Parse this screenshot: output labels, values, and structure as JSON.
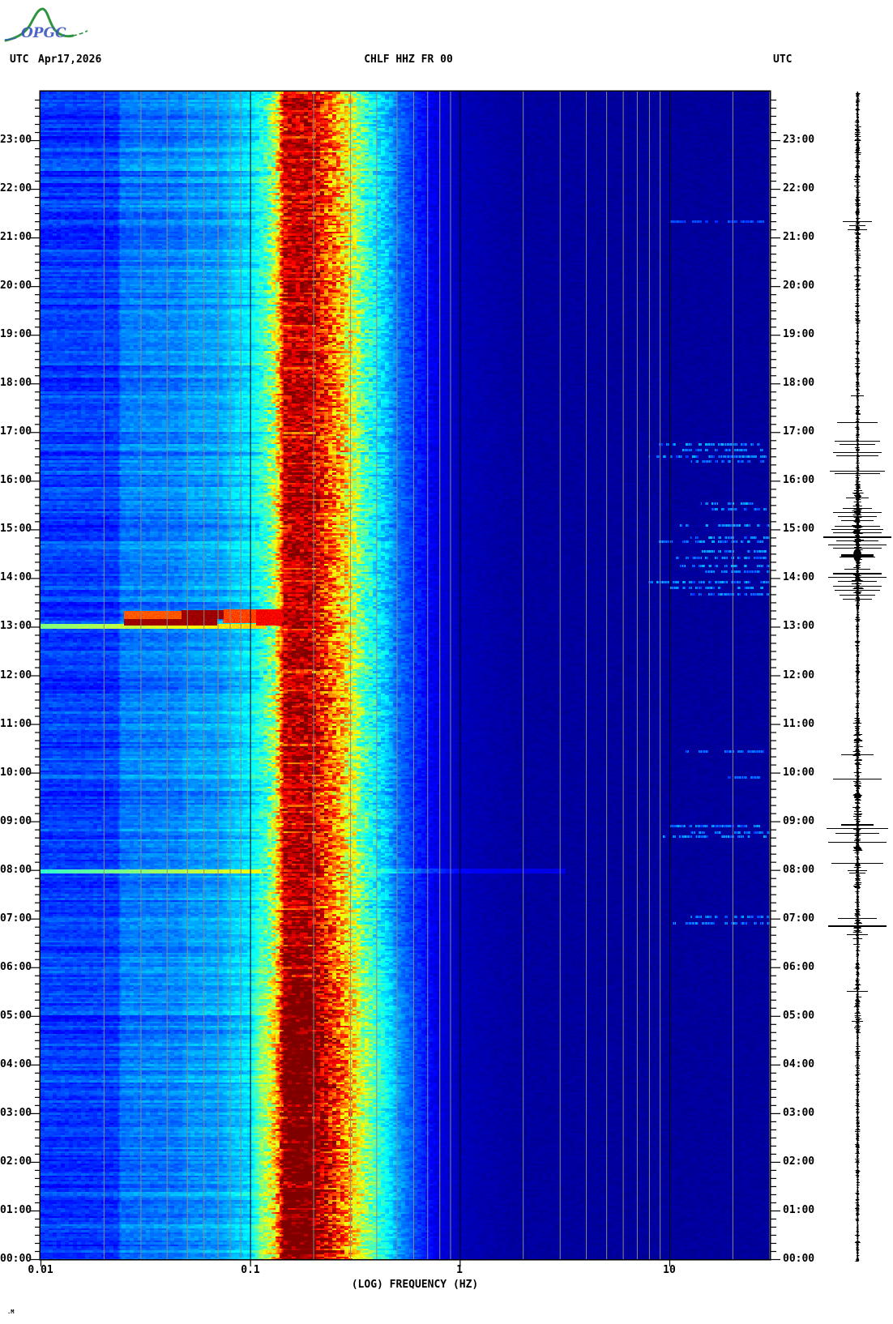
{
  "header": {
    "logo_text": "OPGC",
    "utc_left": "UTC",
    "date": "Apr17,2026",
    "title": "CHLF HHZ FR 00",
    "utc_right": "UTC"
  },
  "footer": {
    "glyph": ".M"
  },
  "axes": {
    "x_title": "(LOG) FREQUENCY (HZ)",
    "freq_ticks": [
      {
        "hz": 0.01,
        "label": "0.01"
      },
      {
        "hz": 0.1,
        "label": "0.1"
      },
      {
        "hz": 1,
        "label": "1"
      },
      {
        "hz": 10,
        "label": "10"
      }
    ],
    "time_labels": [
      "00:00",
      "01:00",
      "02:00",
      "03:00",
      "04:00",
      "05:00",
      "06:00",
      "07:00",
      "08:00",
      "09:00",
      "10:00",
      "11:00",
      "12:00",
      "13:00",
      "14:00",
      "15:00",
      "16:00",
      "17:00",
      "18:00",
      "19:00",
      "20:00",
      "21:00",
      "22:00",
      "23:00"
    ],
    "minor_tick_minutes": 10
  },
  "palette": {
    "grid_gray": "#8a8a8a",
    "axis_black": "#000000",
    "background": "#ffffff",
    "logo_green": "#2e9440",
    "logo_blue": "#3a55c0"
  },
  "chart_data": {
    "type": "heatmap",
    "subtype": "seismic-spectrogram",
    "station": "CHLF HHZ FR 00",
    "date_utc": "Apr17,2026",
    "colormap": "jet",
    "x_axis": {
      "label": "(LOG) FREQUENCY (HZ)",
      "scale": "log",
      "min_hz": 0.01,
      "max_hz": 30,
      "decade_labels": [
        "0.01",
        "0.1",
        "1",
        "10"
      ]
    },
    "y_axis": {
      "label": "UTC",
      "bottom": "00:00",
      "top": "24:00",
      "hour_labels_both_sides": true,
      "minor_tick_minutes": 10
    },
    "gridlines": {
      "gray_multiples": [
        2,
        3,
        4,
        5,
        6,
        7,
        8,
        9
      ],
      "black_lines_hz": [
        0.1,
        1,
        10
      ],
      "gray_also_hz": [
        20,
        30
      ]
    },
    "background_spectrum_logf_level": [
      [
        -2.0,
        0.18
      ],
      [
        -1.63,
        0.18
      ],
      [
        -1.62,
        0.24
      ],
      [
        -1.33,
        0.25
      ],
      [
        -1.31,
        0.27
      ],
      [
        -1.14,
        0.28
      ],
      [
        -1.1,
        0.31
      ],
      [
        -1.02,
        0.34
      ],
      [
        -0.98,
        0.37
      ],
      [
        -0.93,
        0.43
      ],
      [
        -0.885,
        0.55
      ],
      [
        -0.862,
        0.7
      ],
      [
        -0.84,
        0.93
      ],
      [
        -0.71,
        0.95
      ],
      [
        -0.675,
        0.87
      ],
      [
        -0.62,
        0.78
      ],
      [
        -0.565,
        0.69
      ],
      [
        -0.54,
        0.63
      ],
      [
        -0.5,
        0.55
      ],
      [
        -0.46,
        0.45
      ],
      [
        -0.4,
        0.37
      ],
      [
        -0.36,
        0.33
      ],
      [
        -0.3,
        0.24
      ],
      [
        -0.22,
        0.17
      ],
      [
        -0.12,
        0.1
      ],
      [
        0.0,
        0.055
      ],
      [
        0.25,
        0.032
      ],
      [
        0.7,
        0.028
      ],
      [
        1.48,
        0.028
      ]
    ],
    "features": [
      "strong continuous microseism band ~0.13-0.2 Hz (dark red)",
      "orange/yellow flank 0.2-0.3 Hz, cyan 0.09-0.13 Hz and 0.3-0.45 Hz",
      "band widens toward low frequency before ~07:00 UTC",
      "broadband transient 13:00-13:20 UTC with dark red patches 0.025-0.07 Hz",
      "thin broadband line at 13:00 UTC from 0.01 Hz",
      "thin line at ~07:58 UTC across 0.01-0.1 Hz",
      "intermittent bright-blue dashed bursts 8-30 Hz",
      "dark navy quiet background above 1 Hz"
    ],
    "events": [
      {
        "desc": "13:00 broadband onset line",
        "t_start": 779,
        "t_end": 783,
        "logf": [
          -2.0,
          -0.93
        ],
        "level_from": 0.5,
        "level_to": 0.68,
        "mode": "gradient"
      },
      {
        "desc": "low-freq burst block A",
        "t_start": 783,
        "t_end": 792,
        "logf": [
          -1.6,
          -1.16
        ],
        "level": 0.97,
        "mode": "set"
      },
      {
        "desc": "low-freq burst block B",
        "t_start": 791,
        "t_end": 800,
        "logf": [
          -1.33,
          -1.13
        ],
        "level": 0.97,
        "mode": "set"
      },
      {
        "desc": "burst fringe upper",
        "t_start": 791,
        "t_end": 799,
        "logf": [
          -1.6,
          -1.33
        ],
        "level": 0.79,
        "mode": "set"
      },
      {
        "desc": "burst fringe right",
        "t_start": 786,
        "t_end": 801,
        "logf": [
          -1.13,
          -0.97
        ],
        "level": 0.81,
        "mode": "max"
      },
      {
        "desc": "band surge during burst",
        "t_start": 783,
        "t_end": 801,
        "logf": [
          -0.97,
          -0.8
        ],
        "level": 0.88,
        "mode": "max"
      },
      {
        "desc": "07:58 thin line",
        "t_start": 477,
        "t_end": 480,
        "logf": [
          -2.0,
          -0.95
        ],
        "level_from": 0.42,
        "level_to": 0.62,
        "mode": "gradient"
      },
      {
        "desc": "08:00 mid-band streak",
        "t_start": 477,
        "t_end": 481,
        "logf": [
          -0.4,
          0.5
        ],
        "level": 0.07,
        "mode": "add"
      }
    ],
    "hf_bursts": [
      {
        "t": 1280,
        "logf": [
          1.0,
          1.45
        ],
        "amp": 0.5
      },
      {
        "t": 1005,
        "logf": [
          0.95,
          1.48
        ],
        "amp": 1.0
      },
      {
        "t": 998,
        "logf": [
          1.05,
          1.48
        ],
        "amp": 0.9
      },
      {
        "t": 990,
        "logf": [
          0.9,
          1.48
        ],
        "amp": 1.0
      },
      {
        "t": 984,
        "logf": [
          1.1,
          1.45
        ],
        "amp": 0.8
      },
      {
        "t": 932,
        "logf": [
          1.15,
          1.48
        ],
        "amp": 1.0
      },
      {
        "t": 925,
        "logf": [
          1.2,
          1.48
        ],
        "amp": 0.9
      },
      {
        "t": 905,
        "logf": [
          1.05,
          1.48
        ],
        "amp": 1.0
      },
      {
        "t": 890,
        "logf": [
          1.1,
          1.48
        ],
        "amp": 1.0
      },
      {
        "t": 885,
        "logf": [
          0.95,
          1.48
        ],
        "amp": 1.0
      },
      {
        "t": 873,
        "logf": [
          1.15,
          1.48
        ],
        "amp": 1.0
      },
      {
        "t": 865,
        "logf": [
          1.0,
          1.48
        ],
        "amp": 0.9
      },
      {
        "t": 855,
        "logf": [
          1.05,
          1.48
        ],
        "amp": 1.0
      },
      {
        "t": 848,
        "logf": [
          1.15,
          1.48
        ],
        "amp": 0.9
      },
      {
        "t": 835,
        "logf": [
          0.9,
          1.48
        ],
        "amp": 1.0
      },
      {
        "t": 828,
        "logf": [
          1.0,
          1.48
        ],
        "amp": 0.9
      },
      {
        "t": 820,
        "logf": [
          1.1,
          1.48
        ],
        "amp": 0.8
      },
      {
        "t": 627,
        "logf": [
          1.05,
          1.45
        ],
        "amp": 0.8
      },
      {
        "t": 595,
        "logf": [
          1.15,
          1.45
        ],
        "amp": 0.7
      },
      {
        "t": 535,
        "logf": [
          1.0,
          1.45
        ],
        "amp": 0.9
      },
      {
        "t": 527,
        "logf": [
          1.1,
          1.48
        ],
        "amp": 0.9
      },
      {
        "t": 522,
        "logf": [
          0.95,
          1.48
        ],
        "amp": 1.0
      },
      {
        "t": 423,
        "logf": [
          1.1,
          1.48
        ],
        "amp": 0.9
      },
      {
        "t": 415,
        "logf": [
          1.0,
          1.48
        ],
        "amp": 1.0
      }
    ]
  },
  "seismogram": {
    "orientation": "vertical, time matches spectrogram",
    "noisy_periods": [
      {
        "from": "13:30",
        "to": "16:00",
        "gain": 2.4
      },
      {
        "from": "08:20",
        "to": "11:10",
        "gain": 2.0
      },
      {
        "from": "07:40",
        "to": "08:15",
        "gain": 1.6
      },
      {
        "from": "06:30",
        "to": "07:15",
        "gain": 1.9
      },
      {
        "from": "04:40",
        "to": "05:45",
        "gain": 1.5
      },
      {
        "from": "20:00",
        "to": "23:59",
        "gain": 1.3
      }
    ],
    "spikes": [
      {
        "t": "21:20",
        "hw": 18
      },
      {
        "t": "21:15",
        "hw": 10
      },
      {
        "t": "21:10",
        "hw": 12
      },
      {
        "t": "17:46",
        "hw": 8
      },
      {
        "t": "17:13",
        "hw": 25
      },
      {
        "t": "16:50",
        "hw": 28
      },
      {
        "t": "16:46",
        "hw": 22
      },
      {
        "t": "16:36",
        "hw": 30
      },
      {
        "t": "16:32",
        "hw": 26
      },
      {
        "t": "16:13",
        "hw": 34
      },
      {
        "t": "16:10",
        "hw": 28
      },
      {
        "t": "15:40",
        "hw": 14
      },
      {
        "t": "15:27",
        "hw": 18
      },
      {
        "t": "15:22",
        "hw": 30
      },
      {
        "t": "15:17",
        "hw": 24
      },
      {
        "t": "15:12",
        "hw": 20
      },
      {
        "t": "15:05",
        "hw": 28
      },
      {
        "t": "15:01",
        "hw": 32
      },
      {
        "t": "14:57",
        "hw": 30
      },
      {
        "t": "14:52",
        "hw": 42,
        "th": 2
      },
      {
        "t": "14:47",
        "hw": 26
      },
      {
        "t": "14:42",
        "hw": 36
      },
      {
        "t": "14:38",
        "hw": 30
      },
      {
        "t": "14:30",
        "hw": 20,
        "th": 3,
        "blob": true
      },
      {
        "t": "14:27",
        "hw": 22
      },
      {
        "t": "14:12",
        "hw": 16
      },
      {
        "t": "14:07",
        "hw": 30,
        "th": 2
      },
      {
        "t": "14:02",
        "hw": 36
      },
      {
        "t": "13:57",
        "hw": 24
      },
      {
        "t": "13:51",
        "hw": 30
      },
      {
        "t": "13:46",
        "hw": 28
      },
      {
        "t": "13:40",
        "hw": 22
      },
      {
        "t": "13:35",
        "hw": 18
      },
      {
        "t": "10:24",
        "hw": 20
      },
      {
        "t": "09:54",
        "hw": 30
      },
      {
        "t": "08:58",
        "hw": 20,
        "th": 2
      },
      {
        "t": "08:53",
        "hw": 38
      },
      {
        "t": "08:47",
        "hw": 27
      },
      {
        "t": "08:36",
        "hw": 36
      },
      {
        "t": "08:10",
        "hw": 32
      },
      {
        "t": "08:01",
        "hw": 12
      },
      {
        "t": "07:58",
        "hw": 10
      },
      {
        "t": "07:02",
        "hw": 24
      },
      {
        "t": "06:53",
        "hw": 36,
        "th": 2
      },
      {
        "t": "06:42",
        "hw": 13
      },
      {
        "t": "05:32",
        "hw": 13
      },
      {
        "t": "04:55",
        "hw": 7
      }
    ]
  }
}
